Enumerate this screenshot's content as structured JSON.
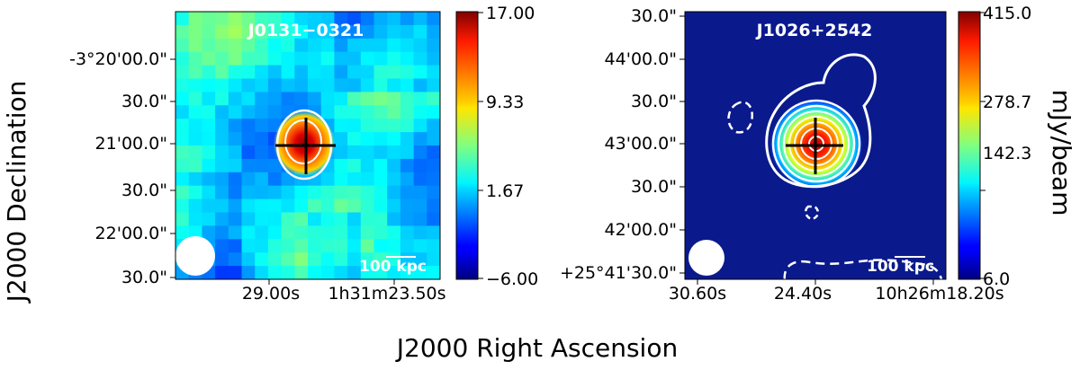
{
  "figure": {
    "global_ylabel": "J2000 Declination",
    "global_xlabel": "J2000 Right Ascension",
    "colorbar_label": "mJy/beam"
  },
  "chart_data": [
    {
      "type": "heatmap",
      "title": "J0131−0321",
      "ytick_labels": [
        "-3°20'00.0\"",
        "30.0\"",
        "21'00.0\"",
        "30.0\"",
        "22'00.0\"",
        "30.0\""
      ],
      "xtick_labels": [
        "29.00s",
        "1h31m23.50s"
      ],
      "colorbar": {
        "min": -6.0,
        "max": 17.0,
        "tick_labels": [
          "17.00",
          "9.33",
          "1.67",
          "−6.00"
        ]
      },
      "scalebar_label": "100 kpc",
      "beam": "circle",
      "crosshair": true
    },
    {
      "type": "heatmap",
      "title": "J1026+2542",
      "ytick_labels": [
        "30.0\"",
        "44'00.0\"",
        "30.0\"",
        "43'00.0\"",
        "30.0\"",
        "42'00.0\"",
        "+25°41'30.0\""
      ],
      "xtick_labels": [
        "30.60s",
        "24.40s",
        "10h26m18.20s"
      ],
      "colorbar": {
        "min": 6.0,
        "max": 415.0,
        "tick_labels": [
          "415.0",
          "278.7",
          "142.3",
          "6.0"
        ]
      },
      "scalebar_label": "100 kpc",
      "beam": "circle",
      "crosshair": true,
      "contours": "white, negative dashed"
    }
  ],
  "colors": {
    "map2_background": "#0a1a8c",
    "overlay": "#ffffff",
    "crosshair": "#000000"
  }
}
